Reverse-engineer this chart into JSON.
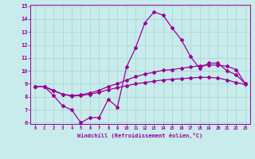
{
  "xlabel": "Windchill (Refroidissement éolien,°C)",
  "background_color": "#c8ecec",
  "grid_color": "#aed4d4",
  "line_color": "#990099",
  "x": [
    0,
    1,
    2,
    3,
    4,
    5,
    6,
    7,
    8,
    9,
    10,
    11,
    12,
    13,
    14,
    15,
    16,
    17,
    18,
    19,
    20,
    21,
    22,
    23
  ],
  "line1": [
    8.8,
    8.8,
    8.1,
    7.3,
    7.0,
    6.0,
    6.4,
    6.4,
    7.8,
    7.2,
    10.3,
    11.8,
    13.7,
    14.55,
    14.3,
    13.3,
    12.4,
    11.1,
    10.2,
    10.6,
    10.6,
    10.0,
    9.7,
    9.0
  ],
  "line2": [
    8.8,
    8.8,
    8.5,
    8.2,
    8.1,
    8.15,
    8.3,
    8.5,
    8.8,
    9.0,
    9.3,
    9.55,
    9.75,
    9.9,
    10.05,
    10.1,
    10.2,
    10.3,
    10.4,
    10.45,
    10.45,
    10.35,
    10.1,
    9.0
  ],
  "line3": [
    8.8,
    8.8,
    8.45,
    8.2,
    8.05,
    8.1,
    8.2,
    8.35,
    8.55,
    8.7,
    8.85,
    9.0,
    9.1,
    9.2,
    9.3,
    9.35,
    9.4,
    9.45,
    9.5,
    9.5,
    9.45,
    9.3,
    9.1,
    8.95
  ],
  "ylim": [
    6,
    15
  ],
  "xlim": [
    -0.5,
    23.5
  ],
  "yticks": [
    6,
    7,
    8,
    9,
    10,
    11,
    12,
    13,
    14,
    15
  ],
  "xticks": [
    0,
    1,
    2,
    3,
    4,
    5,
    6,
    7,
    8,
    9,
    10,
    11,
    12,
    13,
    14,
    15,
    16,
    17,
    18,
    19,
    20,
    21,
    22,
    23
  ]
}
